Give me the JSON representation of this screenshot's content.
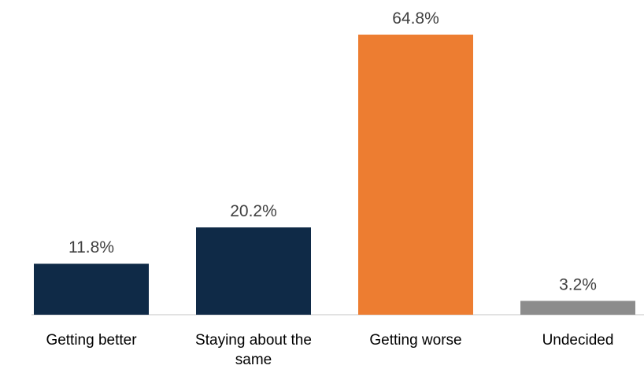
{
  "chart_data": {
    "type": "bar",
    "categories": [
      "Getting better",
      "Staying about the same",
      "Getting worse",
      "Undecided"
    ],
    "category_lines": [
      [
        "Getting better"
      ],
      [
        "Staying about the",
        "same"
      ],
      [
        "Getting worse"
      ],
      [
        "Undecided"
      ]
    ],
    "values": [
      11.8,
      20.2,
      64.8,
      3.2
    ],
    "value_labels": [
      "11.8%",
      "20.2%",
      "64.8%",
      "3.2%"
    ],
    "colors": [
      "#0f2a47",
      "#0f2a47",
      "#ed7d31",
      "#8c8c8c"
    ],
    "title": "",
    "xlabel": "",
    "ylabel": "",
    "ylim": [
      0,
      64.8
    ],
    "grid": false,
    "legend": "none"
  }
}
